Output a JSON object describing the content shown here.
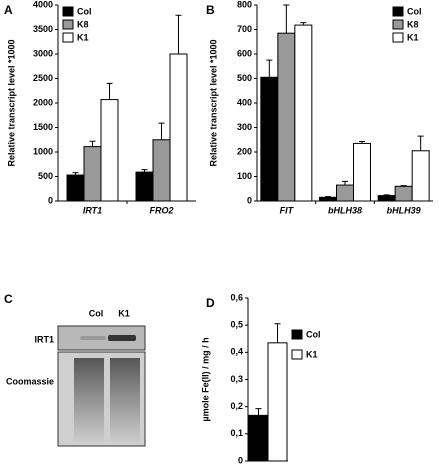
{
  "chart_data": [
    {
      "type": "bar",
      "panel_label": "A",
      "y_label": "Relative transcript level *1000",
      "categories": [
        "IRT1",
        "FRO2"
      ],
      "series": [
        {
          "name": "Col",
          "color": "#000000",
          "values": [
            530,
            590
          ],
          "errors": [
            50,
            50
          ]
        },
        {
          "name": "K8",
          "color": "#999999",
          "values": [
            1110,
            1250
          ],
          "errors": [
            110,
            340
          ]
        },
        {
          "name": "K1",
          "color": "#ffffff",
          "values": [
            2070,
            3000
          ],
          "errors": [
            330,
            790
          ]
        }
      ],
      "ylim": [
        0,
        4000
      ],
      "yticks": [
        0,
        500,
        1000,
        1500,
        2000,
        2500,
        3000,
        3500,
        4000
      ],
      "legend": "top-left"
    },
    {
      "type": "bar",
      "panel_label": "B",
      "y_label": "Relative transcript level *1000",
      "categories": [
        "FIT",
        "bHLH38",
        "bHLH39"
      ],
      "series": [
        {
          "name": "Col",
          "color": "#000000",
          "values": [
            505,
            15,
            22
          ],
          "errors": [
            70,
            3,
            3
          ]
        },
        {
          "name": "K8",
          "color": "#999999",
          "values": [
            685,
            65,
            60
          ],
          "errors": [
            115,
            15,
            3
          ]
        },
        {
          "name": "K1",
          "color": "#ffffff",
          "values": [
            718,
            235,
            205
          ],
          "errors": [
            10,
            8,
            60
          ]
        }
      ],
      "ylim": [
        0,
        800
      ],
      "yticks": [
        0,
        100,
        200,
        300,
        400,
        500,
        600,
        700,
        800
      ],
      "legend": "top-right"
    },
    {
      "type": "blot",
      "panel_label": "C",
      "lanes": [
        "Col",
        "K1"
      ],
      "rows": [
        "IRT1",
        "Coomassie"
      ]
    },
    {
      "type": "bar",
      "panel_label": "D",
      "y_label": "µmole Fe(II) / mg / h",
      "categories": [
        null
      ],
      "series": [
        {
          "name": "Col",
          "color": "#000000",
          "values": [
            0.168
          ],
          "errors": [
            0.025
          ]
        },
        {
          "name": "K1",
          "color": "#ffffff",
          "values": [
            0.435
          ],
          "errors": [
            0.07
          ]
        }
      ],
      "ylim": [
        0,
        0.6
      ],
      "yticks": [
        0,
        {
          "value": 0.1,
          "label": "0,1"
        },
        {
          "value": 0.2,
          "label": "0,2"
        },
        {
          "value": 0.3,
          "label": "0,3"
        },
        {
          "value": 0.4,
          "label": "0,4"
        },
        {
          "value": 0.5,
          "label": "0,5"
        },
        {
          "value": 0.6,
          "label": "0,6"
        }
      ],
      "legend": "right"
    }
  ]
}
